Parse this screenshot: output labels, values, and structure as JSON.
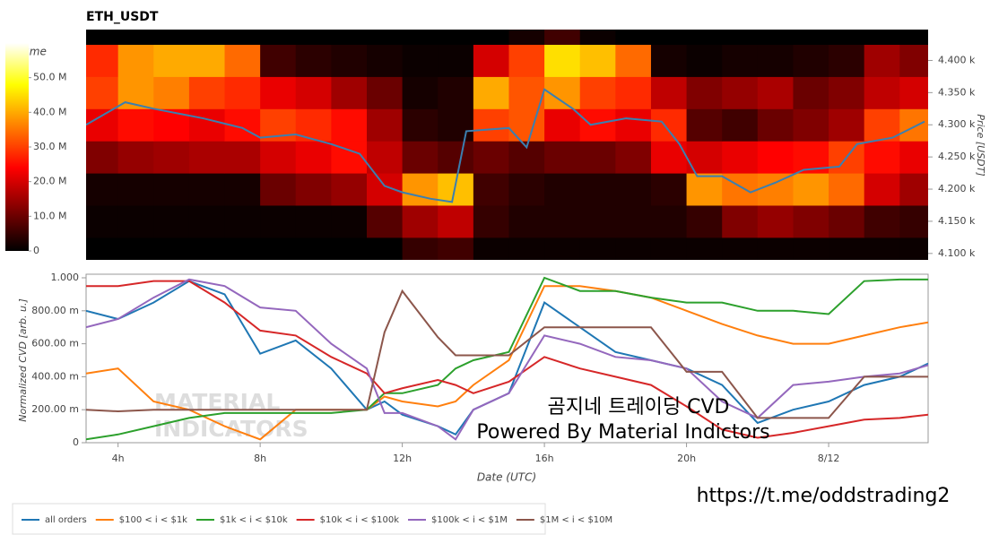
{
  "chart_data": [
    {
      "type": "heatmap",
      "title": "ETH_USDT",
      "colorbar_title": "Volume",
      "y_label": "Price [USDT]",
      "xlim": [
        3.1,
        26.8
      ],
      "ylim": [
        4090,
        4448
      ],
      "yticks": [
        {
          "value": 4100,
          "label": "4.100 k"
        },
        {
          "value": 4150,
          "label": "4.150 k"
        },
        {
          "value": 4200,
          "label": "4.200 k"
        },
        {
          "value": 4250,
          "label": "4.250 k"
        },
        {
          "value": 4300,
          "label": "4.300 k"
        },
        {
          "value": 4350,
          "label": "4.350 k"
        },
        {
          "value": 4400,
          "label": "4.400 k"
        }
      ],
      "zlim": [
        0,
        60
      ],
      "zticks": [
        0,
        {
          "value": 10,
          "label": "10.0 M"
        },
        {
          "value": 20,
          "label": "20.0 M"
        },
        {
          "value": 30,
          "label": "30.0 M"
        },
        {
          "value": 40,
          "label": "40.0 M"
        },
        {
          "value": 50,
          "label": "50.0 M"
        }
      ],
      "x": [
        3.5,
        4.5,
        5.5,
        6.5,
        7.5,
        8.5,
        9.5,
        10.5,
        11.5,
        12.5,
        13.5,
        14.5,
        15.5,
        16.5,
        17.5,
        18.5,
        19.5,
        20.5,
        21.5,
        22.5,
        23.5,
        24.5,
        25.5,
        26.5
      ],
      "y": [
        4100,
        4150,
        4200,
        4250,
        4300,
        4350,
        4400,
        4450
      ],
      "z": [
        [
          0,
          0,
          0,
          0,
          0,
          0,
          0,
          0,
          0,
          5,
          6,
          1,
          1,
          1,
          1,
          1,
          1,
          1,
          1,
          1,
          1,
          1,
          1,
          1
        ],
        [
          1,
          1,
          1,
          1,
          1,
          1,
          1,
          1,
          8,
          15,
          18,
          5,
          3,
          3,
          3,
          3,
          3,
          5,
          12,
          14,
          12,
          10,
          6,
          5
        ],
        [
          2,
          2,
          2,
          2,
          2,
          10,
          12,
          14,
          20,
          38,
          42,
          6,
          4,
          3,
          3,
          3,
          4,
          38,
          35,
          36,
          38,
          34,
          20,
          15
        ],
        [
          12,
          14,
          15,
          16,
          16,
          20,
          22,
          25,
          18,
          10,
          8,
          10,
          8,
          10,
          10,
          12,
          22,
          20,
          22,
          24,
          25,
          30,
          25,
          22
        ],
        [
          22,
          25,
          24,
          22,
          25,
          30,
          28,
          25,
          15,
          4,
          3,
          30,
          32,
          22,
          25,
          22,
          28,
          8,
          6,
          10,
          12,
          15,
          30,
          35
        ],
        [
          30,
          38,
          36,
          30,
          28,
          22,
          20,
          15,
          10,
          2,
          3,
          40,
          32,
          38,
          30,
          28,
          18,
          12,
          14,
          16,
          10,
          12,
          18,
          20
        ],
        [
          28,
          38,
          40,
          40,
          34,
          6,
          4,
          3,
          2,
          1,
          1,
          20,
          30,
          45,
          42,
          34,
          2,
          1,
          2,
          2,
          3,
          4,
          15,
          12
        ],
        [
          0,
          0,
          0,
          0,
          0,
          0,
          0,
          0,
          0,
          0,
          0,
          0,
          2,
          6,
          1,
          0,
          0,
          0,
          0,
          0,
          0,
          0,
          0,
          0
        ]
      ],
      "line": {
        "color": "#3b7fb0",
        "x": [
          3.1,
          4.2,
          5,
          6.4,
          7.5,
          8,
          9,
          10,
          10.8,
          11.5,
          12,
          12.8,
          13.4,
          13.8,
          15,
          15.5,
          16,
          16.8,
          17.3,
          18.3,
          19.3,
          19.8,
          20.3,
          21,
          21.8,
          22.5,
          23.3,
          24.3,
          24.8,
          25.8,
          26.7
        ],
        "values": [
          4300,
          4335,
          4325,
          4310,
          4295,
          4280,
          4285,
          4270,
          4255,
          4205,
          4195,
          4185,
          4180,
          4290,
          4295,
          4265,
          4355,
          4325,
          4300,
          4310,
          4305,
          4270,
          4220,
          4220,
          4195,
          4210,
          4230,
          4235,
          4270,
          4280,
          4305
        ]
      }
    },
    {
      "type": "line",
      "x_label": "Date (UTC)",
      "y_label": "Normalized CVD [arb. u.]",
      "xlim": [
        3.1,
        26.8
      ],
      "ylim": [
        0,
        1
      ],
      "xticks": [
        {
          "value": 4,
          "label": "4h"
        },
        {
          "value": 8,
          "label": "8h"
        },
        {
          "value": 12,
          "label": "12h"
        },
        {
          "value": 16,
          "label": "16h"
        },
        {
          "value": 20,
          "label": "20h"
        },
        {
          "value": 24,
          "label": "8/12"
        }
      ],
      "yticks": [
        0,
        {
          "value": 0.2,
          "label": "200.00 m"
        },
        {
          "value": 0.4,
          "label": "400.00 m"
        },
        {
          "value": 0.6,
          "label": "600.00 m"
        },
        {
          "value": 0.8,
          "label": "800.00 m"
        },
        {
          "value": 1,
          "label": "1.000"
        }
      ],
      "legend": "bottom-left",
      "x": [
        3.1,
        4,
        5,
        6,
        7,
        8,
        9,
        10,
        11,
        11.5,
        12,
        13,
        13.5,
        14,
        15,
        16,
        17,
        18,
        19,
        20,
        21,
        22,
        23,
        24,
        25,
        26,
        26.8
      ],
      "series": [
        {
          "name": "all orders",
          "color": "#1f77b4",
          "values": [
            0.8,
            0.75,
            0.85,
            0.98,
            0.9,
            0.54,
            0.62,
            0.45,
            0.2,
            0.25,
            0.17,
            0.1,
            0.05,
            0.2,
            0.3,
            0.85,
            0.7,
            0.55,
            0.5,
            0.45,
            0.35,
            0.12,
            0.2,
            0.25,
            0.35,
            0.4,
            0.48
          ]
        },
        {
          "name": "$100 < i < $1k",
          "color": "#ff7f0e",
          "values": [
            0.42,
            0.45,
            0.25,
            0.2,
            0.1,
            0.02,
            0.2,
            0.2,
            0.2,
            0.28,
            0.25,
            0.22,
            0.25,
            0.35,
            0.5,
            0.95,
            0.95,
            0.92,
            0.88,
            0.8,
            0.72,
            0.65,
            0.6,
            0.6,
            0.65,
            0.7,
            0.73
          ]
        },
        {
          "name": "$1k < i < $10k",
          "color": "#2ca02c",
          "values": [
            0.02,
            0.05,
            0.1,
            0.15,
            0.18,
            0.18,
            0.18,
            0.18,
            0.2,
            0.3,
            0.3,
            0.35,
            0.45,
            0.5,
            0.55,
            1,
            0.92,
            0.92,
            0.88,
            0.85,
            0.85,
            0.8,
            0.8,
            0.78,
            0.98,
            0.99,
            0.99
          ]
        },
        {
          "name": "$10k < i < $100k",
          "color": "#d62728",
          "values": [
            0.95,
            0.95,
            0.98,
            0.98,
            0.85,
            0.68,
            0.65,
            0.52,
            0.42,
            0.3,
            0.33,
            0.38,
            0.35,
            0.3,
            0.37,
            0.52,
            0.45,
            0.4,
            0.35,
            0.22,
            0.08,
            0.03,
            0.06,
            0.1,
            0.14,
            0.15,
            0.17
          ]
        },
        {
          "name": "$100k < i < $1M",
          "color": "#9467bd",
          "values": [
            0.7,
            0.75,
            0.88,
            0.99,
            0.95,
            0.82,
            0.8,
            0.6,
            0.45,
            0.18,
            0.18,
            0.1,
            0.02,
            0.2,
            0.3,
            0.65,
            0.6,
            0.52,
            0.5,
            0.45,
            0.25,
            0.15,
            0.35,
            0.37,
            0.4,
            0.42,
            0.47
          ]
        },
        {
          "name": "$1M < i < $10M",
          "color": "#8c564b",
          "values": [
            0.2,
            0.19,
            0.2,
            0.2,
            0.2,
            0.2,
            0.2,
            0.2,
            0.2,
            0.67,
            0.92,
            0.64,
            0.53,
            0.53,
            0.53,
            0.7,
            0.7,
            0.7,
            0.7,
            0.43,
            0.43,
            0.15,
            0.15,
            0.15,
            0.4,
            0.4,
            0.4
          ]
        }
      ],
      "watermark": [
        "MATERIAL",
        "INDICATORS"
      ],
      "annotations": [
        "곰지네 트레이딩 CVD",
        "Powered By Material Indictors",
        "https://t.me/oddstrading2"
      ]
    }
  ]
}
